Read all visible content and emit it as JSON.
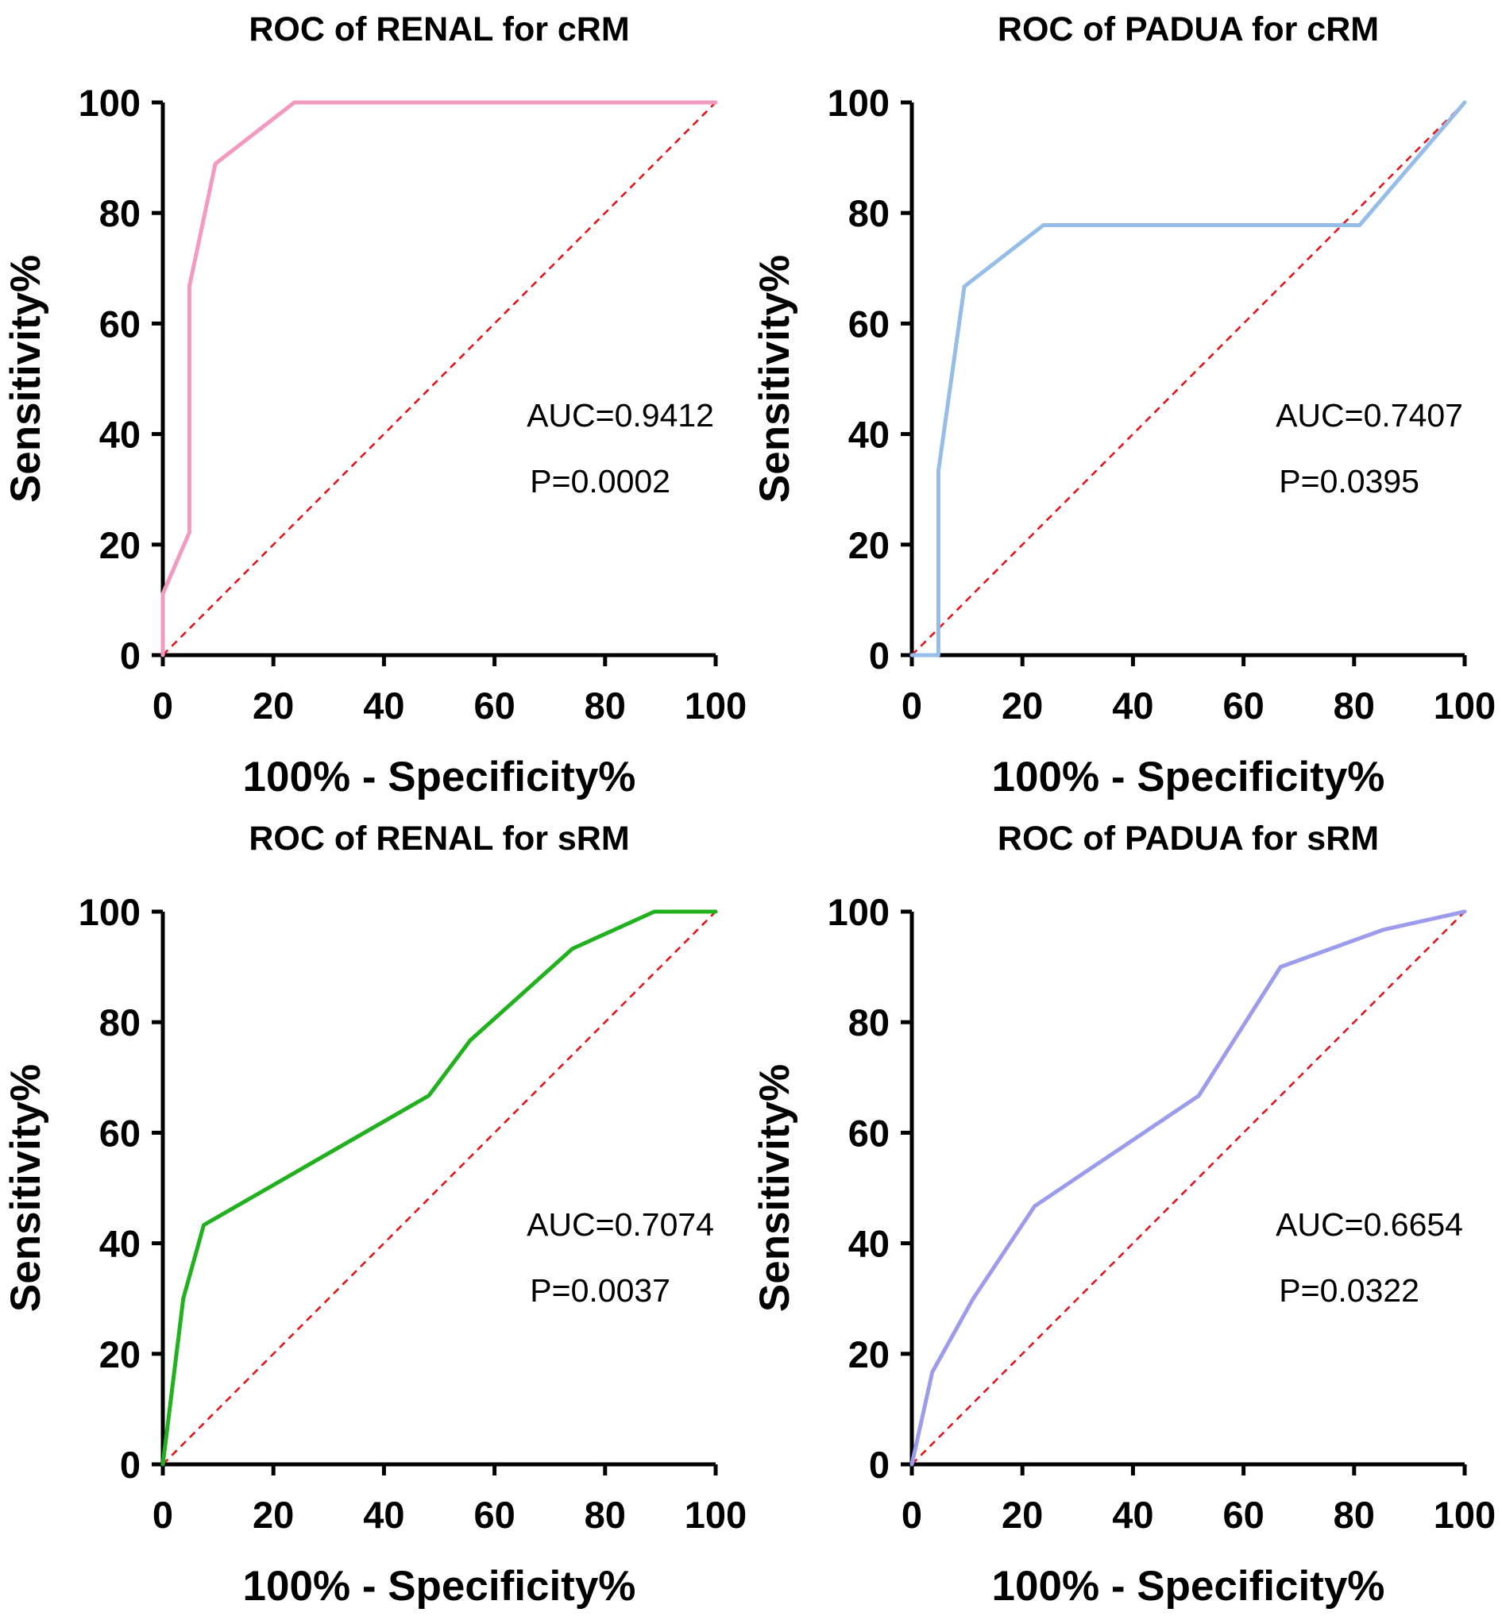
{
  "chart_data": [
    {
      "type": "line",
      "title": "ROC of RENAL for cRM",
      "xlabel": "100% - Specificity%",
      "ylabel": "Sensitivity%",
      "xlim": [
        0,
        100
      ],
      "ylim": [
        0,
        100
      ],
      "xticks": [
        "0",
        "20",
        "40",
        "60",
        "80",
        "100"
      ],
      "yticks": [
        "0",
        "20",
        "40",
        "60",
        "80",
        "100"
      ],
      "grid": false,
      "reference_line": {
        "style": "dashed",
        "color": "#e3141b",
        "from": [
          0,
          0
        ],
        "to": [
          100,
          100
        ]
      },
      "series": [
        {
          "color": "#f29ac0",
          "x": [
            0,
            0,
            4.8,
            4.8,
            9.5,
            23.8,
            100
          ],
          "y": [
            0,
            11.1,
            22.2,
            66.7,
            88.9,
            100,
            100
          ]
        }
      ],
      "annotations": [
        "AUC=0.9412",
        "P=0.0002"
      ]
    },
    {
      "type": "line",
      "title": "ROC of PADUA for cRM",
      "xlabel": "100% - Specificity%",
      "ylabel": "Sensitivity%",
      "xlim": [
        0,
        100
      ],
      "ylim": [
        0,
        100
      ],
      "xticks": [
        "0",
        "20",
        "40",
        "60",
        "80",
        "100"
      ],
      "yticks": [
        "0",
        "20",
        "40",
        "60",
        "80",
        "100"
      ],
      "grid": false,
      "reference_line": {
        "style": "dashed",
        "color": "#e3141b",
        "from": [
          0,
          0
        ],
        "to": [
          100,
          100
        ]
      },
      "series": [
        {
          "color": "#95bde8",
          "x": [
            0,
            4.8,
            4.8,
            9.5,
            23.8,
            81,
            100
          ],
          "y": [
            0,
            0,
            33.3,
            66.7,
            77.8,
            77.8,
            100
          ]
        }
      ],
      "annotations": [
        "AUC=0.7407",
        "P=0.0395"
      ]
    },
    {
      "type": "line",
      "title": "ROC of RENAL for sRM",
      "xlabel": "100% - Specificity%",
      "ylabel": "Sensitivity%",
      "xlim": [
        0,
        100
      ],
      "ylim": [
        0,
        100
      ],
      "xticks": [
        "0",
        "20",
        "40",
        "60",
        "80",
        "100"
      ],
      "yticks": [
        "0",
        "20",
        "40",
        "60",
        "80",
        "100"
      ],
      "grid": false,
      "reference_line": {
        "style": "dashed",
        "color": "#e3141b",
        "from": [
          0,
          0
        ],
        "to": [
          100,
          100
        ]
      },
      "series": [
        {
          "color": "#22b11e",
          "x": [
            0,
            3.7,
            7.4,
            48.1,
            55.6,
            74.1,
            88.9,
            100
          ],
          "y": [
            0,
            30,
            43.3,
            66.7,
            76.7,
            93.3,
            100,
            100
          ]
        }
      ],
      "annotations": [
        "AUC=0.7074",
        "P=0.0037"
      ]
    },
    {
      "type": "line",
      "title": "ROC of PADUA for sRM",
      "xlabel": "100% - Specificity%",
      "ylabel": "Sensitivity%",
      "xlim": [
        0,
        100
      ],
      "ylim": [
        0,
        100
      ],
      "xticks": [
        "0",
        "20",
        "40",
        "60",
        "80",
        "100"
      ],
      "yticks": [
        "0",
        "20",
        "40",
        "60",
        "80",
        "100"
      ],
      "grid": false,
      "reference_line": {
        "style": "dashed",
        "color": "#e3141b",
        "from": [
          0,
          0
        ],
        "to": [
          100,
          100
        ]
      },
      "series": [
        {
          "color": "#9c9cec",
          "x": [
            0,
            3.7,
            11.1,
            22.2,
            51.9,
            66.7,
            85.2,
            100
          ],
          "y": [
            0,
            16.7,
            30,
            46.7,
            66.7,
            90,
            96.7,
            100
          ]
        }
      ],
      "annotations": [
        "AUC=0.6654",
        "P=0.0322"
      ]
    }
  ]
}
